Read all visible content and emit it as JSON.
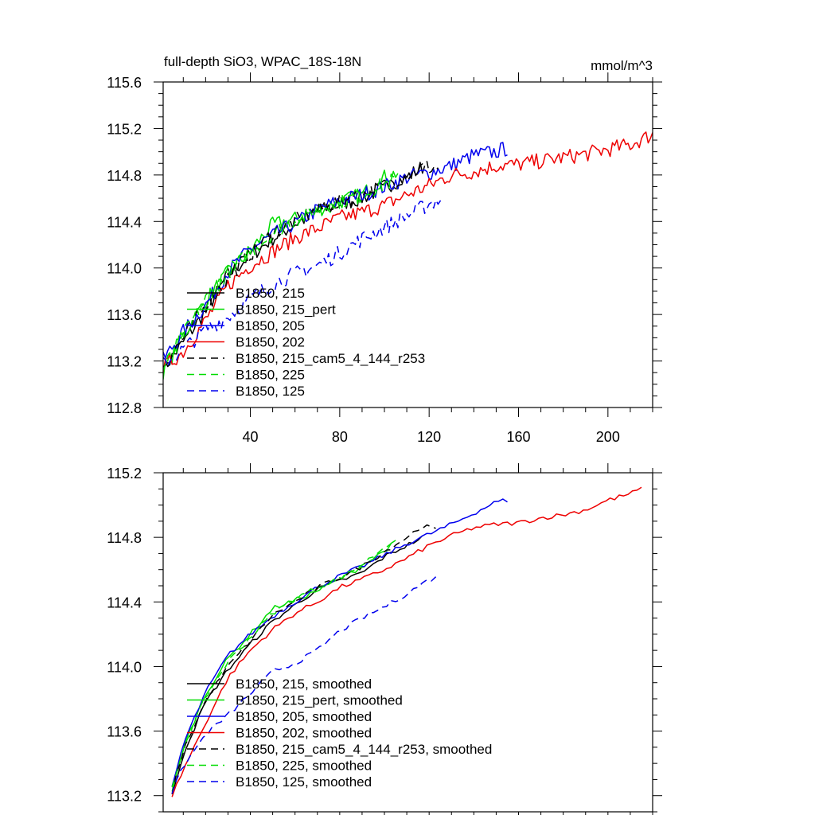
{
  "chart_data": [
    {
      "type": "line",
      "title": "full-depth SiO3, WPAC_18S-18N",
      "units": "mmol/m^3",
      "xlabel": "",
      "ylabel": "",
      "xlim": [
        1,
        220
      ],
      "ylim": [
        112.8,
        115.6
      ],
      "xticks": [
        40,
        80,
        120,
        160,
        200
      ],
      "xtick_labels": [
        "40",
        "80",
        "120",
        "160",
        "200"
      ],
      "yticks": [
        112.8,
        113.2,
        113.6,
        114.0,
        114.4,
        114.8,
        115.2,
        115.6
      ],
      "ytick_labels": [
        "112.8",
        "113.2",
        "113.6",
        "114.0",
        "114.4",
        "114.8",
        "115.2",
        "115.6"
      ],
      "legend_position": "lower-left",
      "series": [
        {
          "name": "B1850, 215",
          "color": "#000000",
          "dash": "solid",
          "x": [
            1,
            10,
            20,
            30,
            40,
            50,
            60,
            70,
            80,
            90,
            100,
            110,
            118
          ],
          "values": [
            113.13,
            113.36,
            113.63,
            113.94,
            114.11,
            114.25,
            114.38,
            114.48,
            114.55,
            114.6,
            114.7,
            114.78,
            114.88
          ]
        },
        {
          "name": "B1850, 215_pert",
          "color": "#00dd00",
          "dash": "solid",
          "x": [
            1,
            10,
            20,
            30,
            40,
            50,
            60,
            70,
            80,
            90,
            100,
            106
          ],
          "values": [
            113.11,
            113.42,
            113.72,
            113.96,
            114.15,
            114.37,
            114.42,
            114.5,
            114.57,
            114.63,
            114.78,
            114.82
          ]
        },
        {
          "name": "B1850, 205",
          "color": "#0000ee",
          "dash": "solid",
          "x": [
            1,
            10,
            20,
            30,
            40,
            50,
            60,
            70,
            80,
            90,
            100,
            110,
            120,
            130,
            140,
            150,
            155
          ],
          "values": [
            113.21,
            113.45,
            113.68,
            113.97,
            114.16,
            114.28,
            114.38,
            114.5,
            114.58,
            114.63,
            114.7,
            114.78,
            114.82,
            114.88,
            114.97,
            115.0,
            115.03
          ]
        },
        {
          "name": "B1850, 202",
          "color": "#ee0000",
          "dash": "solid",
          "x": [
            1,
            10,
            20,
            30,
            40,
            50,
            60,
            70,
            80,
            90,
            100,
            110,
            120,
            130,
            140,
            150,
            160,
            170,
            180,
            190,
            200,
            210,
            220
          ],
          "values": [
            113.14,
            113.28,
            113.55,
            113.85,
            114.02,
            114.14,
            114.26,
            114.34,
            114.43,
            114.48,
            114.54,
            114.63,
            114.71,
            114.8,
            114.83,
            114.88,
            114.89,
            114.92,
            114.95,
            114.98,
            115.02,
            115.06,
            115.15
          ]
        },
        {
          "name": "B1850, 215_cam5_4_144_r253",
          "color": "#000000",
          "dash": "dashed",
          "x": [
            1,
            10,
            20,
            30,
            40,
            50,
            60,
            70,
            80,
            90,
            100,
            110,
            118,
            124
          ],
          "values": [
            113.16,
            113.4,
            113.67,
            113.92,
            114.12,
            114.3,
            114.4,
            114.5,
            114.57,
            114.63,
            114.7,
            114.8,
            114.87,
            114.85
          ]
        },
        {
          "name": "B1850, 225",
          "color": "#00dd00",
          "dash": "dashed",
          "x": [
            1,
            10,
            20,
            30,
            40,
            50,
            60,
            70,
            80,
            90,
            100,
            105
          ],
          "values": [
            113.13,
            113.42,
            113.73,
            113.96,
            114.14,
            114.3,
            114.41,
            114.5,
            114.57,
            114.63,
            114.72,
            114.77
          ]
        },
        {
          "name": "B1850, 125",
          "color": "#0000ee",
          "dash": "dashed",
          "x": [
            1,
            10,
            20,
            30,
            40,
            50,
            60,
            70,
            80,
            90,
            100,
            110,
            120,
            126
          ],
          "values": [
            113.17,
            113.3,
            113.47,
            113.58,
            113.74,
            113.86,
            113.95,
            114.02,
            114.13,
            114.25,
            114.35,
            114.45,
            114.55,
            114.6
          ]
        }
      ]
    },
    {
      "type": "line",
      "title": "",
      "units": "",
      "xlabel": "",
      "ylabel": "",
      "xlim": [
        1,
        220
      ],
      "ylim": [
        113.1,
        115.2
      ],
      "xticks": [
        40,
        80,
        120,
        160,
        200
      ],
      "yticks": [
        113.2,
        113.6,
        114.0,
        114.4,
        114.8,
        115.2
      ],
      "ytick_labels": [
        "113.2",
        "113.6",
        "114.0",
        "114.4",
        "114.8",
        "115.2"
      ],
      "legend_position": "lower-left",
      "series": [
        {
          "name": "B1850, 215, smoothed",
          "color": "#000000",
          "dash": "solid",
          "x": [
            5,
            10,
            20,
            30,
            40,
            50,
            60,
            70,
            80,
            90,
            100,
            110,
            117
          ],
          "values": [
            113.2,
            113.46,
            113.78,
            113.98,
            114.14,
            114.28,
            114.38,
            114.48,
            114.53,
            114.58,
            114.68,
            114.75,
            114.8
          ]
        },
        {
          "name": "B1850, 215_pert, smoothed",
          "color": "#00dd00",
          "dash": "solid",
          "x": [
            5,
            10,
            20,
            30,
            40,
            50,
            60,
            70,
            80,
            90,
            100,
            105
          ],
          "values": [
            113.22,
            113.5,
            113.83,
            114.05,
            114.2,
            114.36,
            114.41,
            114.47,
            114.54,
            114.62,
            114.72,
            114.77
          ]
        },
        {
          "name": "B1850, 205, smoothed",
          "color": "#0000ee",
          "dash": "solid",
          "x": [
            5,
            10,
            20,
            30,
            40,
            50,
            60,
            70,
            80,
            90,
            100,
            110,
            120,
            130,
            140,
            150,
            155
          ],
          "values": [
            113.25,
            113.52,
            113.84,
            114.07,
            114.2,
            114.31,
            114.4,
            114.49,
            114.56,
            114.62,
            114.69,
            114.76,
            114.82,
            114.88,
            114.95,
            115.02,
            115.03
          ]
        },
        {
          "name": "B1850, 202, smoothed",
          "color": "#ee0000",
          "dash": "solid",
          "x": [
            5,
            10,
            20,
            30,
            40,
            50,
            60,
            70,
            80,
            90,
            100,
            110,
            120,
            130,
            140,
            150,
            160,
            170,
            180,
            190,
            200,
            210,
            215
          ],
          "values": [
            113.2,
            113.36,
            113.65,
            113.93,
            114.1,
            114.23,
            114.33,
            114.4,
            114.49,
            114.54,
            114.6,
            114.67,
            114.75,
            114.81,
            114.86,
            114.88,
            114.89,
            114.92,
            114.94,
            114.97,
            115.03,
            115.07,
            115.1
          ]
        },
        {
          "name": "B1850, 215_cam5_4_144_r253, smoothed",
          "color": "#000000",
          "dash": "dashed",
          "x": [
            5,
            10,
            20,
            30,
            40,
            50,
            60,
            70,
            80,
            90,
            100,
            110,
            117,
            123
          ],
          "values": [
            113.22,
            113.48,
            113.79,
            114.0,
            114.16,
            114.32,
            114.4,
            114.49,
            114.55,
            114.62,
            114.71,
            114.8,
            114.87,
            114.85
          ]
        },
        {
          "name": "B1850, 225, smoothed",
          "color": "#00dd00",
          "dash": "dashed",
          "x": [
            5,
            10,
            20,
            30,
            40,
            50,
            60,
            70,
            80,
            90,
            100,
            104
          ],
          "values": [
            113.24,
            113.5,
            113.81,
            114.03,
            114.18,
            114.33,
            114.42,
            114.49,
            114.55,
            114.63,
            114.74,
            114.78
          ]
        },
        {
          "name": "B1850, 125, smoothed",
          "color": "#0000ee",
          "dash": "dashed",
          "x": [
            5,
            10,
            20,
            30,
            40,
            50,
            60,
            70,
            80,
            90,
            100,
            110,
            120,
            124
          ],
          "values": [
            113.22,
            113.38,
            113.58,
            113.7,
            113.83,
            113.97,
            114.02,
            114.1,
            114.22,
            114.3,
            114.37,
            114.45,
            114.54,
            114.55
          ]
        }
      ]
    }
  ]
}
